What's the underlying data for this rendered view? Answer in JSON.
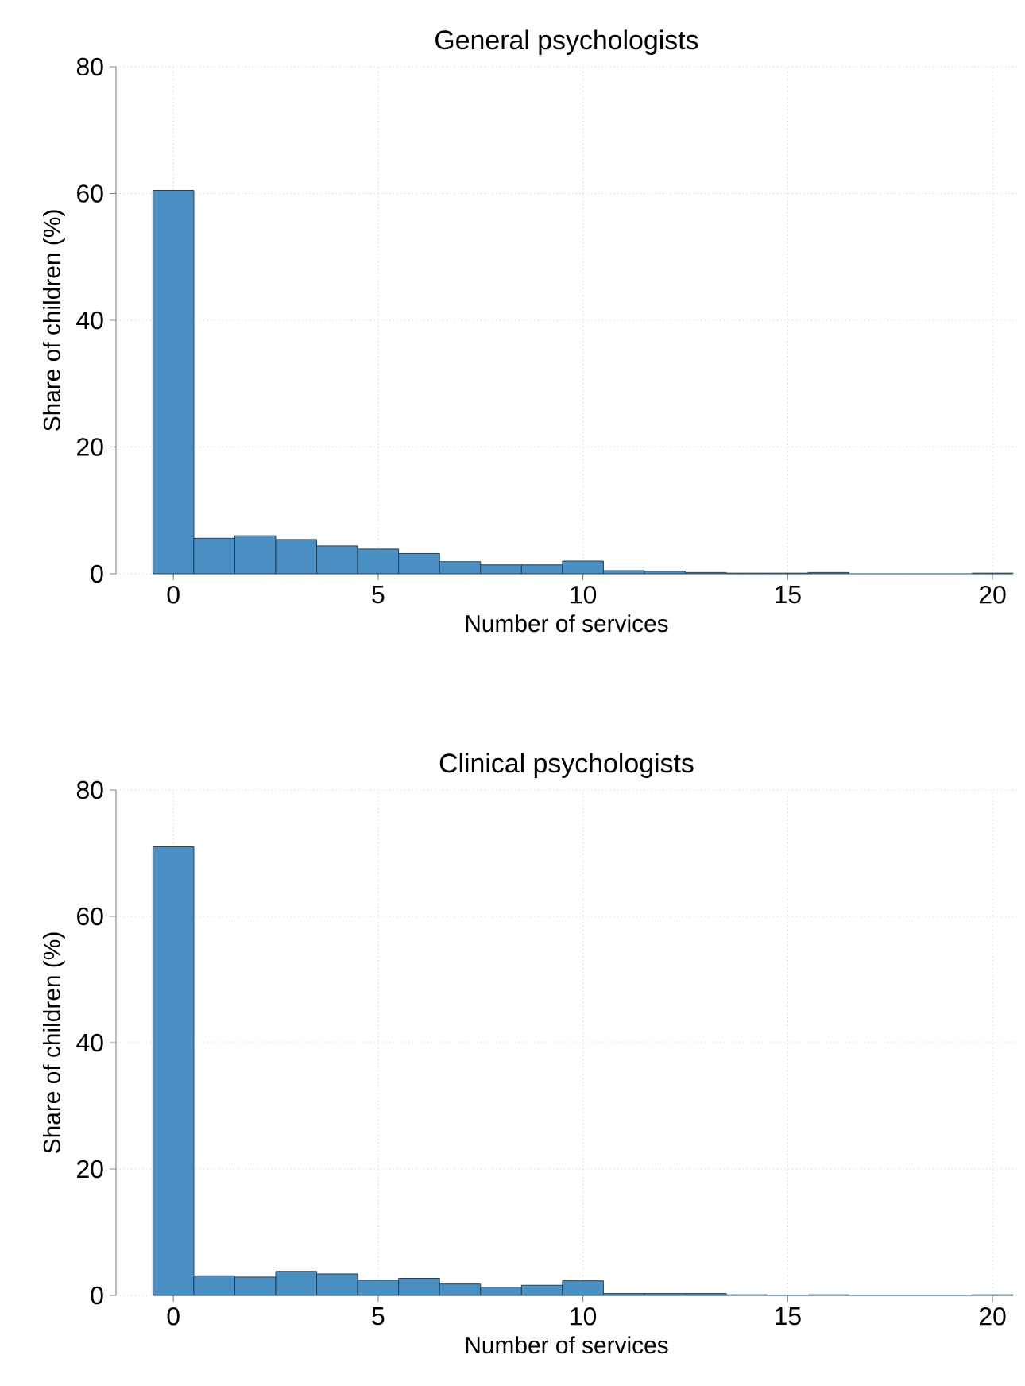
{
  "chart_data": [
    {
      "type": "histogram",
      "title": "General psychologists",
      "xlabel": "Number of services",
      "ylabel": "Share of children (%)",
      "color": "#4b90c4",
      "bins": [
        -0.5,
        0.5,
        1.5,
        2.5,
        3.5,
        4.5,
        5.5,
        6.5,
        7.5,
        8.5,
        9.5,
        10.5,
        11.5,
        12.5,
        13.5,
        14.5,
        15.5,
        16.5,
        17.5,
        18.5,
        19.5,
        20.5
      ],
      "values": [
        60.5,
        5.6,
        6.0,
        5.4,
        4.4,
        3.9,
        3.2,
        1.9,
        1.4,
        1.4,
        2.0,
        0.5,
        0.4,
        0.2,
        0.1,
        0.1,
        0.2,
        0,
        0,
        0,
        0.1
      ],
      "xlim": [
        -1.4,
        20.6
      ],
      "ylim": [
        0,
        80
      ],
      "xticks": [
        0,
        5,
        10,
        15,
        20
      ],
      "yticks": [
        0,
        20,
        40,
        60,
        80
      ],
      "grid": true
    },
    {
      "type": "histogram",
      "title": "Clinical psychologists",
      "xlabel": "Number of services",
      "ylabel": "Share of children (%)",
      "color": "#4b90c4",
      "bins": [
        -0.5,
        0.5,
        1.5,
        2.5,
        3.5,
        4.5,
        5.5,
        6.5,
        7.5,
        8.5,
        9.5,
        10.5,
        11.5,
        12.5,
        13.5,
        14.5,
        15.5,
        16.5,
        17.5,
        18.5,
        19.5,
        20.5
      ],
      "values": [
        71.0,
        3.1,
        2.9,
        3.8,
        3.4,
        2.4,
        2.7,
        1.8,
        1.3,
        1.6,
        2.3,
        0.3,
        0.3,
        0.3,
        0.1,
        0,
        0.1,
        0,
        0,
        0,
        0.1
      ],
      "xlim": [
        -1.4,
        20.6
      ],
      "ylim": [
        0,
        80
      ],
      "xticks": [
        0,
        5,
        10,
        15,
        20
      ],
      "yticks": [
        0,
        20,
        40,
        60,
        80
      ],
      "grid": true
    }
  ]
}
